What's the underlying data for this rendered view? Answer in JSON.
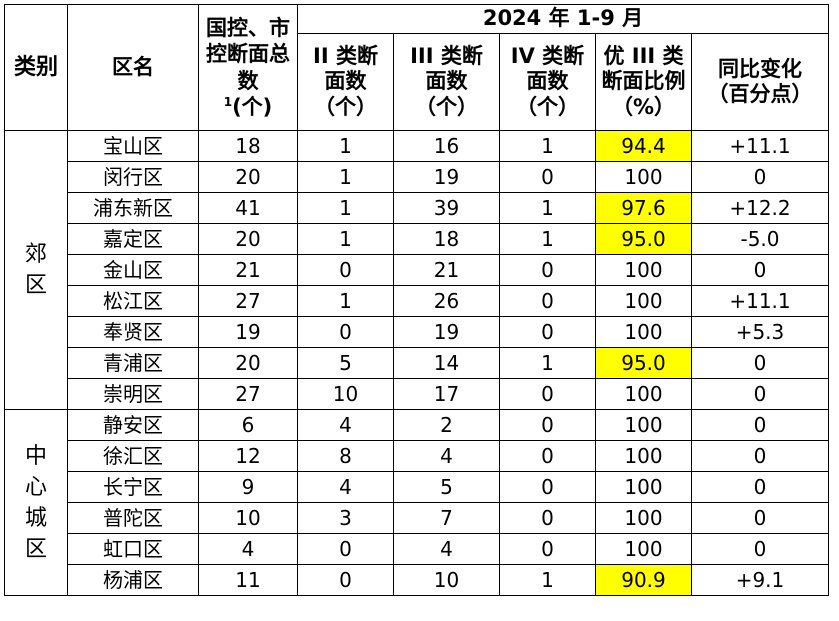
{
  "header": {
    "category": "类别",
    "district": "区名",
    "total_sections": "国控、市控断面总数",
    "total_sup": "1",
    "total_unit": "(个)",
    "period": "2024 年 1-9 月",
    "class2": "II 类断面数（个）",
    "class3": "III 类断面数（个）",
    "class4": "IV 类断面数（个）",
    "ratio": "优 III 类断面比例（%）",
    "change": "同比变化（百分点）"
  },
  "groups": [
    {
      "category": "郊区",
      "rows": [
        {
          "name": "宝山区",
          "total": "18",
          "c2": "1",
          "c3": "16",
          "c4": "1",
          "ratio": "94.4",
          "change": "+11.1",
          "highlight": true
        },
        {
          "name": "闵行区",
          "total": "20",
          "c2": "1",
          "c3": "19",
          "c4": "0",
          "ratio": "100",
          "change": "0",
          "highlight": false
        },
        {
          "name": "浦东新区",
          "total": "41",
          "c2": "1",
          "c3": "39",
          "c4": "1",
          "ratio": "97.6",
          "change": "+12.2",
          "highlight": true
        },
        {
          "name": "嘉定区",
          "total": "20",
          "c2": "1",
          "c3": "18",
          "c4": "1",
          "ratio": "95.0",
          "change": "-5.0",
          "highlight": true
        },
        {
          "name": "金山区",
          "total": "21",
          "c2": "0",
          "c3": "21",
          "c4": "0",
          "ratio": "100",
          "change": "0",
          "highlight": false
        },
        {
          "name": "松江区",
          "total": "27",
          "c2": "1",
          "c3": "26",
          "c4": "0",
          "ratio": "100",
          "change": "+11.1",
          "highlight": false
        },
        {
          "name": "奉贤区",
          "total": "19",
          "c2": "0",
          "c3": "19",
          "c4": "0",
          "ratio": "100",
          "change": "+5.3",
          "highlight": false
        },
        {
          "name": "青浦区",
          "total": "20",
          "c2": "5",
          "c3": "14",
          "c4": "1",
          "ratio": "95.0",
          "change": "0",
          "highlight": true
        },
        {
          "name": "崇明区",
          "total": "27",
          "c2": "10",
          "c3": "17",
          "c4": "0",
          "ratio": "100",
          "change": "0",
          "highlight": false
        }
      ]
    },
    {
      "category": "中心城区",
      "rows": [
        {
          "name": "静安区",
          "total": "6",
          "c2": "4",
          "c3": "2",
          "c4": "0",
          "ratio": "100",
          "change": "0",
          "highlight": false
        },
        {
          "name": "徐汇区",
          "total": "12",
          "c2": "8",
          "c3": "4",
          "c4": "0",
          "ratio": "100",
          "change": "0",
          "highlight": false
        },
        {
          "name": "长宁区",
          "total": "9",
          "c2": "4",
          "c3": "5",
          "c4": "0",
          "ratio": "100",
          "change": "0",
          "highlight": false
        },
        {
          "name": "普陀区",
          "total": "10",
          "c2": "3",
          "c3": "7",
          "c4": "0",
          "ratio": "100",
          "change": "0",
          "highlight": false
        },
        {
          "name": "虹口区",
          "total": "4",
          "c2": "0",
          "c3": "4",
          "c4": "0",
          "ratio": "100",
          "change": "0",
          "highlight": false
        },
        {
          "name": "杨浦区",
          "total": "11",
          "c2": "0",
          "c3": "10",
          "c4": "1",
          "ratio": "90.9",
          "change": "+9.1",
          "highlight": true
        }
      ]
    }
  ],
  "colors": {
    "highlight": "#ffff00",
    "border": "#000000"
  }
}
